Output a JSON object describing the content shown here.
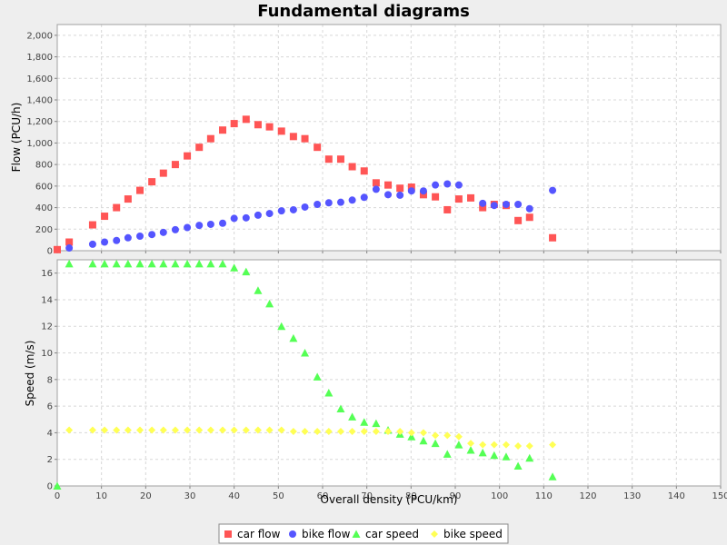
{
  "chart_data": [
    {
      "type": "scatter",
      "title": "Fundamental diagrams",
      "xlabel": "Overall density (PCU/km)",
      "ylabel": "Flow (PCU/h)",
      "xlim": [
        0,
        150
      ],
      "ylim": [
        0,
        2100
      ],
      "x_ticks": [
        "0",
        "10",
        "20",
        "30",
        "40",
        "50",
        "60",
        "70",
        "80",
        "90",
        "100",
        "110",
        "120",
        "130",
        "140",
        "150"
      ],
      "y_ticks": [
        "0",
        "200",
        "400",
        "600",
        "800",
        "1,000",
        "1,200",
        "1,400",
        "1,600",
        "1,800",
        "2,000"
      ],
      "grid": true,
      "series": [
        {
          "name": "car flow",
          "marker": "square",
          "color": "#ff5555",
          "points": [
            [
              0,
              10
            ],
            [
              2.7,
              80
            ],
            [
              8,
              240
            ],
            [
              10.7,
              320
            ],
            [
              13.4,
              400
            ],
            [
              16,
              480
            ],
            [
              18.7,
              560
            ],
            [
              21.4,
              640
            ],
            [
              24,
              720
            ],
            [
              26.7,
              800
            ],
            [
              29.4,
              880
            ],
            [
              32.1,
              960
            ],
            [
              34.7,
              1040
            ],
            [
              37.4,
              1120
            ],
            [
              40,
              1180
            ],
            [
              42.7,
              1220
            ],
            [
              45.4,
              1170
            ],
            [
              48,
              1150
            ],
            [
              50.7,
              1110
            ],
            [
              53.4,
              1060
            ],
            [
              56,
              1040
            ],
            [
              58.8,
              960
            ],
            [
              61.4,
              850
            ],
            [
              64.1,
              850
            ],
            [
              66.7,
              780
            ],
            [
              69.4,
              740
            ],
            [
              72.1,
              630
            ],
            [
              74.8,
              610
            ],
            [
              77.5,
              580
            ],
            [
              80.1,
              590
            ],
            [
              82.8,
              520
            ],
            [
              85.5,
              500
            ],
            [
              88.2,
              380
            ],
            [
              90.8,
              480
            ],
            [
              93.5,
              490
            ],
            [
              96.2,
              400
            ],
            [
              98.8,
              430
            ],
            [
              101.5,
              420
            ],
            [
              104.2,
              280
            ],
            [
              106.8,
              310
            ],
            [
              112,
              120
            ]
          ]
        },
        {
          "name": "bike flow",
          "marker": "circle",
          "color": "#5555ff",
          "points": [
            [
              2.7,
              25
            ],
            [
              8,
              60
            ],
            [
              10.7,
              80
            ],
            [
              13.4,
              95
            ],
            [
              16,
              120
            ],
            [
              18.7,
              135
            ],
            [
              21.4,
              150
            ],
            [
              24,
              170
            ],
            [
              26.7,
              195
            ],
            [
              29.4,
              215
            ],
            [
              32.1,
              235
            ],
            [
              34.7,
              245
            ],
            [
              37.4,
              255
            ],
            [
              40,
              300
            ],
            [
              42.7,
              305
            ],
            [
              45.4,
              330
            ],
            [
              48,
              345
            ],
            [
              50.7,
              370
            ],
            [
              53.4,
              380
            ],
            [
              56,
              405
            ],
            [
              58.8,
              430
            ],
            [
              61.4,
              445
            ],
            [
              64.1,
              450
            ],
            [
              66.7,
              470
            ],
            [
              69.4,
              495
            ],
            [
              72.1,
              570
            ],
            [
              74.8,
              520
            ],
            [
              77.5,
              515
            ],
            [
              80.1,
              555
            ],
            [
              82.8,
              555
            ],
            [
              85.5,
              610
            ],
            [
              88.2,
              620
            ],
            [
              90.8,
              610
            ],
            [
              96.2,
              440
            ],
            [
              98.8,
              420
            ],
            [
              101.5,
              430
            ],
            [
              104.2,
              430
            ],
            [
              106.8,
              390
            ],
            [
              112,
              560
            ]
          ]
        }
      ]
    },
    {
      "type": "scatter",
      "xlabel": "Overall density (PCU/km)",
      "ylabel": "Speed (m/s)",
      "xlim": [
        0,
        150
      ],
      "ylim": [
        0,
        17
      ],
      "x_ticks": [
        "0",
        "10",
        "20",
        "30",
        "40",
        "50",
        "60",
        "70",
        "80",
        "90",
        "100",
        "110",
        "120",
        "130",
        "140",
        "150"
      ],
      "y_ticks": [
        "0",
        "2",
        "4",
        "6",
        "8",
        "10",
        "12",
        "14",
        "16"
      ],
      "grid": true,
      "series": [
        {
          "name": "car speed",
          "marker": "triangle",
          "color": "#55ff55",
          "points": [
            [
              0,
              0
            ],
            [
              2.7,
              16.7
            ],
            [
              8,
              16.7
            ],
            [
              10.7,
              16.7
            ],
            [
              13.4,
              16.7
            ],
            [
              16,
              16.7
            ],
            [
              18.7,
              16.7
            ],
            [
              21.4,
              16.7
            ],
            [
              24,
              16.7
            ],
            [
              26.7,
              16.7
            ],
            [
              29.4,
              16.7
            ],
            [
              32.1,
              16.7
            ],
            [
              34.7,
              16.7
            ],
            [
              37.4,
              16.7
            ],
            [
              40,
              16.4
            ],
            [
              42.7,
              16.1
            ],
            [
              45.4,
              14.7
            ],
            [
              48,
              13.7
            ],
            [
              50.7,
              12
            ],
            [
              53.4,
              11.1
            ],
            [
              56,
              10
            ],
            [
              58.8,
              8.2
            ],
            [
              61.4,
              7
            ],
            [
              64.1,
              5.8
            ],
            [
              66.7,
              5.2
            ],
            [
              69.4,
              4.8
            ],
            [
              72.1,
              4.7
            ],
            [
              74.8,
              4.2
            ],
            [
              77.5,
              3.9
            ],
            [
              80.1,
              3.7
            ],
            [
              82.8,
              3.4
            ],
            [
              85.5,
              3.2
            ],
            [
              88.2,
              2.4
            ],
            [
              90.8,
              3.1
            ],
            [
              93.5,
              2.7
            ],
            [
              96.2,
              2.5
            ],
            [
              98.8,
              2.3
            ],
            [
              101.5,
              2.2
            ],
            [
              104.2,
              1.5
            ],
            [
              106.8,
              2.1
            ],
            [
              112,
              0.7
            ]
          ]
        },
        {
          "name": "bike speed",
          "marker": "diamond",
          "color": "#ffff55",
          "points": [
            [
              2.7,
              4.2
            ],
            [
              8,
              4.2
            ],
            [
              10.7,
              4.2
            ],
            [
              13.4,
              4.2
            ],
            [
              16,
              4.2
            ],
            [
              18.7,
              4.2
            ],
            [
              21.4,
              4.2
            ],
            [
              24,
              4.2
            ],
            [
              26.7,
              4.2
            ],
            [
              29.4,
              4.2
            ],
            [
              32.1,
              4.2
            ],
            [
              34.7,
              4.2
            ],
            [
              37.4,
              4.2
            ],
            [
              40,
              4.2
            ],
            [
              42.7,
              4.2
            ],
            [
              45.4,
              4.2
            ],
            [
              48,
              4.2
            ],
            [
              50.7,
              4.2
            ],
            [
              53.4,
              4.1
            ],
            [
              56,
              4.1
            ],
            [
              58.8,
              4.1
            ],
            [
              61.4,
              4.1
            ],
            [
              64.1,
              4.1
            ],
            [
              66.7,
              4.1
            ],
            [
              69.4,
              4.1
            ],
            [
              72.1,
              4.1
            ],
            [
              74.8,
              4.1
            ],
            [
              77.5,
              4.1
            ],
            [
              80.1,
              4
            ],
            [
              82.8,
              4
            ],
            [
              85.5,
              3.8
            ],
            [
              88.2,
              3.8
            ],
            [
              90.8,
              3.7
            ],
            [
              93.5,
              3.2
            ],
            [
              96.2,
              3.1
            ],
            [
              98.8,
              3.1
            ],
            [
              101.5,
              3.1
            ],
            [
              104.2,
              3
            ],
            [
              106.8,
              3
            ],
            [
              112,
              3.1
            ]
          ]
        }
      ]
    }
  ],
  "legend": [
    {
      "label": "car flow",
      "marker": "square",
      "color": "#ff5555"
    },
    {
      "label": "bike flow",
      "marker": "circle",
      "color": "#5555ff"
    },
    {
      "label": "car speed",
      "marker": "triangle",
      "color": "#55ff55"
    },
    {
      "label": "bike speed",
      "marker": "diamond",
      "color": "#ffff55"
    }
  ]
}
